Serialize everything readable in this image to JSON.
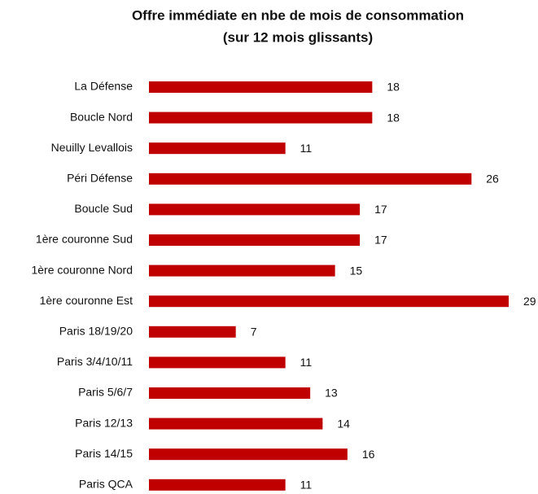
{
  "chart_data": {
    "type": "bar",
    "orientation": "horizontal",
    "title": [
      "Offre immédiate en nbe de mois de consommation",
      "(sur 12 mois glissants)"
    ],
    "categories": [
      "La Défense",
      "Boucle Nord",
      "Neuilly Levallois",
      "Péri Défense",
      "Boucle Sud",
      "1ère couronne Sud",
      "1ère couronne Nord",
      "1ère couronne Est",
      "Paris 18/19/20",
      "Paris 3/4/10/11",
      "Paris 5/6/7",
      "Paris 12/13",
      "Paris 14/15",
      "Paris QCA"
    ],
    "values": [
      18,
      18,
      11,
      26,
      17,
      17,
      15,
      29,
      7,
      11,
      13,
      14,
      16,
      11
    ],
    "color": "#c00000"
  }
}
